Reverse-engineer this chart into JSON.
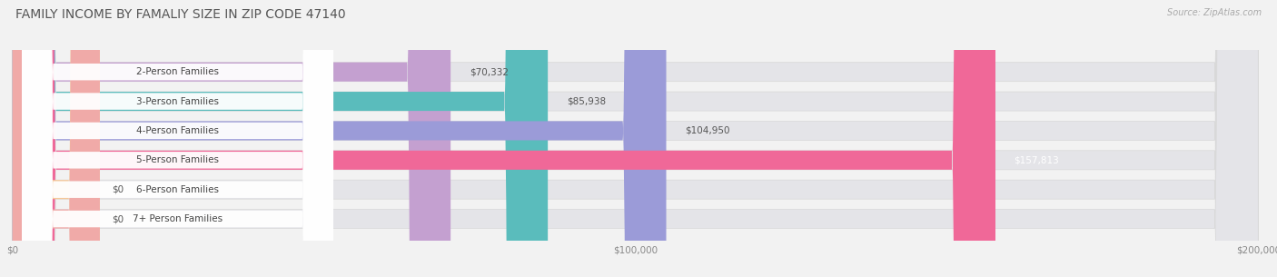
{
  "title": "FAMILY INCOME BY FAMALIY SIZE IN ZIP CODE 47140",
  "source": "Source: ZipAtlas.com",
  "categories": [
    "2-Person Families",
    "3-Person Families",
    "4-Person Families",
    "5-Person Families",
    "6-Person Families",
    "7+ Person Families"
  ],
  "values": [
    70332,
    85938,
    104950,
    157813,
    0,
    0
  ],
  "bar_colors": [
    "#c4a0d0",
    "#5abcbc",
    "#9b9bd8",
    "#f06898",
    "#f5c898",
    "#f0aaa8"
  ],
  "value_labels": [
    "$70,332",
    "$85,938",
    "$104,950",
    "$157,813",
    "$0",
    "$0"
  ],
  "value_label_colors": [
    "#555555",
    "#555555",
    "#555555",
    "#ffffff",
    "#555555",
    "#555555"
  ],
  "x_max": 200000,
  "x_ticks": [
    0,
    100000,
    200000
  ],
  "x_tick_labels": [
    "$0",
    "$100,000",
    "$200,000"
  ],
  "bg_color": "#f2f2f2",
  "bar_bg_color": "#e4e4e8",
  "title_fontsize": 10,
  "source_fontsize": 7,
  "label_fontsize": 7.5,
  "value_fontsize": 7.5
}
